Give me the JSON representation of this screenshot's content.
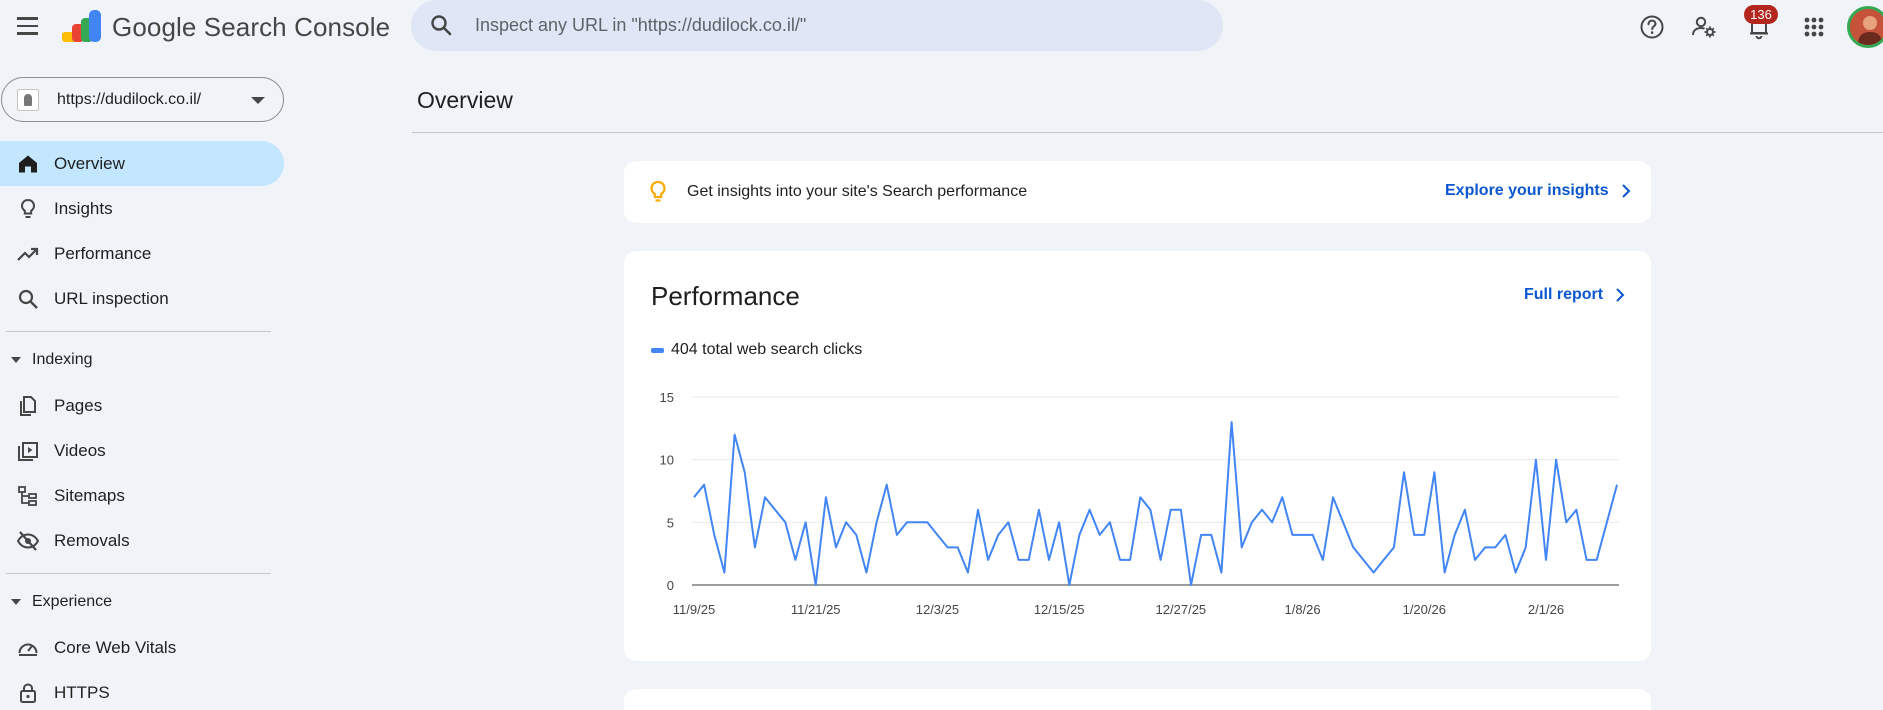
{
  "app": {
    "product_name": "Google Search Console",
    "logo": "search-console-logo"
  },
  "search": {
    "placeholder": "Inspect any URL in \"https://dudilock.co.il/\"",
    "icon": "search-icon"
  },
  "header_icons": {
    "help": "help-icon",
    "users_settings": "manage-users-icon",
    "notifications": "notifications-bell-icon",
    "notifications_count": "136",
    "apps": "apps-grid-icon"
  },
  "property": {
    "url": "https://dudilock.co.il/"
  },
  "sidebar": {
    "top_items": [
      {
        "label": "Overview",
        "icon": "home-icon",
        "active": true
      },
      {
        "label": "Insights",
        "icon": "lightbulb-icon"
      },
      {
        "label": "Performance",
        "icon": "trending-up-icon"
      },
      {
        "label": "URL inspection",
        "icon": "search-icon"
      }
    ],
    "indexing": {
      "label": "Indexing",
      "items": [
        {
          "label": "Pages",
          "icon": "pages-icon"
        },
        {
          "label": "Videos",
          "icon": "video-icon"
        },
        {
          "label": "Sitemaps",
          "icon": "sitemap-icon"
        },
        {
          "label": "Removals",
          "icon": "eye-off-icon"
        }
      ]
    },
    "experience": {
      "label": "Experience",
      "items": [
        {
          "label": "Core Web Vitals",
          "icon": "speedometer-icon"
        },
        {
          "label": "HTTPS",
          "icon": "lock-icon"
        }
      ]
    }
  },
  "main": {
    "title": "Overview",
    "insights_card": {
      "text": "Get insights into your site's Search performance",
      "link": "Explore your insights"
    },
    "performance_card": {
      "title": "Performance",
      "link": "Full report",
      "legend": "404 total web search clicks"
    }
  },
  "colors": {
    "background": "#f0f4f9",
    "accent_blue": "#0b57d0",
    "line_blue": "#4285f4",
    "active_nav": "#c2e7ff",
    "badge_red": "#b3261e"
  },
  "chart_data": {
    "type": "line",
    "ylim": [
      0,
      15
    ],
    "yticks": [
      "0",
      "5",
      "10",
      "15"
    ],
    "xticks": [
      {
        "label": "11/9/25",
        "index": 0
      },
      {
        "label": "11/21/25",
        "index": 12
      },
      {
        "label": "12/3/25",
        "index": 24
      },
      {
        "label": "12/15/25",
        "index": 36
      },
      {
        "label": "12/27/25",
        "index": 48
      },
      {
        "label": "1/8/26",
        "index": 60
      },
      {
        "label": "1/20/26",
        "index": 72
      },
      {
        "label": "2/1/26",
        "index": 84
      }
    ],
    "series": [
      {
        "name": "404 total web search clicks",
        "color": "#4285f4",
        "values": [
          7,
          8,
          4,
          1,
          12,
          9,
          3,
          7,
          6,
          5,
          2,
          5,
          0,
          7,
          3,
          5,
          4,
          1,
          5,
          8,
          4,
          5,
          5,
          5,
          4,
          3,
          3,
          1,
          6,
          2,
          4,
          5,
          2,
          2,
          6,
          2,
          5,
          0,
          4,
          6,
          4,
          5,
          2,
          2,
          7,
          6,
          2,
          6,
          6,
          0,
          4,
          4,
          1,
          13,
          3,
          5,
          6,
          5,
          7,
          4,
          4,
          4,
          2,
          7,
          5,
          3,
          2,
          1,
          2,
          3,
          9,
          4,
          4,
          9,
          1,
          4,
          6,
          2,
          3,
          3,
          4,
          1,
          3,
          10,
          2,
          10,
          5,
          6,
          2,
          2,
          5,
          8
        ]
      }
    ],
    "grid": true
  }
}
